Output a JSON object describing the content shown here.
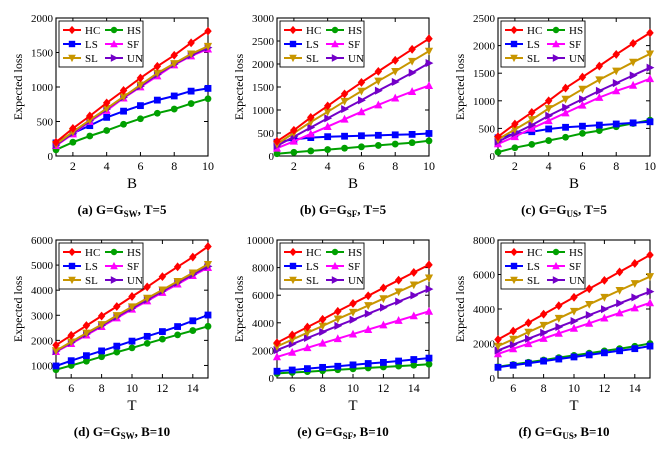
{
  "chart_data": [
    {
      "type": "line",
      "caption": "(a) G=G",
      "caption_sub": "SW",
      "caption_tail": ", T=5",
      "xlabel": "B",
      "ylabel": "Expected loss",
      "xlim": [
        1,
        10
      ],
      "ylim": [
        0,
        2000
      ],
      "xticks": [
        2,
        4,
        6,
        8,
        10
      ],
      "yticks": [
        0,
        500,
        1000,
        1500,
        2000
      ],
      "x": [
        1,
        2,
        3,
        4,
        5,
        6,
        7,
        8,
        9,
        10
      ],
      "series": [
        {
          "name": "HC",
          "values": [
            200,
            400,
            580,
            770,
            950,
            1130,
            1300,
            1460,
            1640,
            1810
          ]
        },
        {
          "name": "LS",
          "values": [
            190,
            330,
            440,
            560,
            650,
            730,
            810,
            870,
            940,
            980
          ]
        },
        {
          "name": "SL",
          "values": [
            170,
            350,
            520,
            690,
            860,
            1030,
            1200,
            1340,
            1480,
            1590
          ]
        },
        {
          "name": "HS",
          "values": [
            90,
            200,
            290,
            370,
            460,
            540,
            620,
            680,
            760,
            830
          ]
        },
        {
          "name": "SF",
          "values": [
            150,
            320,
            500,
            660,
            840,
            1000,
            1160,
            1320,
            1450,
            1550
          ]
        },
        {
          "name": "UN",
          "values": [
            160,
            330,
            510,
            680,
            850,
            1010,
            1180,
            1330,
            1460,
            1570
          ]
        }
      ]
    },
    {
      "type": "line",
      "caption": "(b) G=G",
      "caption_sub": "SF",
      "caption_tail": ", T=5",
      "xlabel": "B",
      "ylabel": "Expected loss",
      "xlim": [
        1,
        10
      ],
      "ylim": [
        0,
        3000
      ],
      "xticks": [
        2,
        4,
        6,
        8,
        10
      ],
      "yticks": [
        0,
        500,
        1000,
        1500,
        2000,
        2500,
        3000
      ],
      "x": [
        1,
        2,
        3,
        4,
        5,
        6,
        7,
        8,
        9,
        10
      ],
      "series": [
        {
          "name": "HC",
          "values": [
            320,
            560,
            840,
            1090,
            1350,
            1600,
            1840,
            2080,
            2320,
            2550
          ]
        },
        {
          "name": "LS",
          "values": [
            300,
            360,
            400,
            420,
            430,
            440,
            450,
            460,
            470,
            490
          ]
        },
        {
          "name": "SL",
          "values": [
            260,
            500,
            740,
            960,
            1190,
            1410,
            1630,
            1840,
            2060,
            2280
          ]
        },
        {
          "name": "HS",
          "values": [
            50,
            80,
            110,
            140,
            170,
            200,
            230,
            260,
            290,
            330
          ]
        },
        {
          "name": "SF",
          "values": [
            170,
            320,
            480,
            640,
            800,
            960,
            1110,
            1260,
            1400,
            1530
          ]
        },
        {
          "name": "UN",
          "values": [
            220,
            420,
            620,
            820,
            1020,
            1210,
            1420,
            1610,
            1810,
            2020
          ]
        }
      ]
    },
    {
      "type": "line",
      "caption": "(c) G=G",
      "caption_sub": "US",
      "caption_tail": ", T=5",
      "xlabel": "B",
      "ylabel": "Expected loss",
      "xlim": [
        1,
        10
      ],
      "ylim": [
        0,
        2500
      ],
      "xticks": [
        2,
        4,
        6,
        8,
        10
      ],
      "yticks": [
        0,
        500,
        1000,
        1500,
        2000,
        2500
      ],
      "x": [
        1,
        2,
        3,
        4,
        5,
        6,
        7,
        8,
        9,
        10
      ],
      "series": [
        {
          "name": "HC",
          "values": [
            350,
            580,
            790,
            1000,
            1230,
            1430,
            1630,
            1840,
            2040,
            2230
          ]
        },
        {
          "name": "LS",
          "values": [
            330,
            400,
            440,
            490,
            520,
            540,
            560,
            580,
            600,
            620
          ]
        },
        {
          "name": "SL",
          "values": [
            300,
            480,
            660,
            860,
            1030,
            1210,
            1380,
            1540,
            1700,
            1850
          ]
        },
        {
          "name": "HS",
          "values": [
            70,
            150,
            210,
            280,
            340,
            410,
            460,
            530,
            590,
            650
          ]
        },
        {
          "name": "SF",
          "values": [
            220,
            350,
            500,
            640,
            780,
            920,
            1060,
            1180,
            1280,
            1400
          ]
        },
        {
          "name": "UN",
          "values": [
            260,
            410,
            560,
            730,
            880,
            1030,
            1180,
            1320,
            1460,
            1600
          ]
        }
      ]
    },
    {
      "type": "line",
      "caption": "(d) G=G",
      "caption_sub": "SW",
      "caption_tail": ", B=10",
      "xlabel": "T",
      "ylabel": "Expected loss",
      "xlim": [
        5,
        15
      ],
      "ylim": [
        500,
        6000
      ],
      "xticks": [
        6,
        8,
        10,
        12,
        14
      ],
      "yticks": [
        1000,
        2000,
        3000,
        4000,
        5000,
        6000
      ],
      "x": [
        5,
        6,
        7,
        8,
        9,
        10,
        11,
        12,
        13,
        14,
        15
      ],
      "series": [
        {
          "name": "HC",
          "values": [
            1810,
            2200,
            2590,
            2970,
            3350,
            3750,
            4130,
            4540,
            4930,
            5320,
            5740
          ]
        },
        {
          "name": "LS",
          "values": [
            980,
            1190,
            1390,
            1580,
            1770,
            1970,
            2160,
            2350,
            2550,
            2780,
            3010
          ]
        },
        {
          "name": "SL",
          "values": [
            1590,
            1940,
            2290,
            2630,
            2990,
            3340,
            3680,
            4010,
            4350,
            4690,
            5030
          ]
        },
        {
          "name": "HS",
          "values": [
            830,
            1000,
            1170,
            1350,
            1530,
            1700,
            1880,
            2050,
            2220,
            2390,
            2560
          ]
        },
        {
          "name": "SF",
          "values": [
            1550,
            1870,
            2210,
            2550,
            2890,
            3240,
            3570,
            3910,
            4240,
            4580,
            4900
          ]
        },
        {
          "name": "UN",
          "values": [
            1570,
            1910,
            2250,
            2590,
            2940,
            3280,
            3620,
            3960,
            4300,
            4620,
            4950
          ]
        }
      ]
    },
    {
      "type": "line",
      "caption": "(e) G=G",
      "caption_sub": "SF",
      "caption_tail": ", B=10",
      "xlabel": "T",
      "ylabel": "Expected loss",
      "xlim": [
        5,
        15
      ],
      "ylim": [
        0,
        10000
      ],
      "xticks": [
        6,
        8,
        10,
        12,
        14
      ],
      "yticks": [
        0,
        2000,
        4000,
        6000,
        8000,
        10000
      ],
      "x": [
        5,
        6,
        7,
        8,
        9,
        10,
        11,
        12,
        13,
        14,
        15
      ],
      "series": [
        {
          "name": "HC",
          "values": [
            2550,
            3120,
            3690,
            4250,
            4830,
            5400,
            5960,
            6530,
            7090,
            7650,
            8200
          ]
        },
        {
          "name": "LS",
          "values": [
            490,
            580,
            680,
            770,
            850,
            950,
            1050,
            1130,
            1230,
            1340,
            1440
          ]
        },
        {
          "name": "SL",
          "values": [
            2280,
            2780,
            3280,
            3770,
            4280,
            4760,
            5250,
            5750,
            6250,
            6750,
            7250
          ]
        },
        {
          "name": "HS",
          "values": [
            330,
            400,
            460,
            530,
            600,
            660,
            730,
            800,
            860,
            930,
            1000
          ]
        },
        {
          "name": "SF",
          "values": [
            1530,
            1860,
            2190,
            2520,
            2850,
            3180,
            3510,
            3840,
            4170,
            4500,
            4830
          ]
        },
        {
          "name": "UN",
          "values": [
            2020,
            2460,
            2900,
            3340,
            3780,
            4220,
            4660,
            5100,
            5540,
            5980,
            6440
          ]
        }
      ]
    },
    {
      "type": "line",
      "caption": "(f) G=G",
      "caption_sub": "US",
      "caption_tail": ", B=10",
      "xlabel": "T",
      "ylabel": "Expected loss",
      "xlim": [
        5,
        15
      ],
      "ylim": [
        0,
        8000
      ],
      "xticks": [
        6,
        8,
        10,
        12,
        14
      ],
      "yticks": [
        0,
        2000,
        4000,
        6000,
        8000
      ],
      "x": [
        5,
        6,
        7,
        8,
        9,
        10,
        11,
        12,
        13,
        14,
        15
      ],
      "series": [
        {
          "name": "HC",
          "values": [
            2230,
            2720,
            3200,
            3700,
            4190,
            4680,
            5170,
            5660,
            6150,
            6640,
            7130
          ]
        },
        {
          "name": "LS",
          "values": [
            620,
            740,
            860,
            980,
            1100,
            1220,
            1340,
            1460,
            1580,
            1700,
            1850
          ]
        },
        {
          "name": "SL",
          "values": [
            1850,
            2250,
            2660,
            3060,
            3460,
            3870,
            4270,
            4680,
            5080,
            5480,
            5880
          ]
        },
        {
          "name": "HS",
          "values": [
            650,
            780,
            910,
            1040,
            1180,
            1310,
            1440,
            1570,
            1700,
            1840,
            2000
          ]
        },
        {
          "name": "SF",
          "values": [
            1400,
            1690,
            1990,
            2290,
            2590,
            2880,
            3170,
            3470,
            3770,
            4060,
            4360
          ]
        },
        {
          "name": "UN",
          "values": [
            1600,
            1940,
            2280,
            2620,
            2960,
            3300,
            3650,
            3990,
            4330,
            4670,
            5010
          ]
        }
      ]
    }
  ],
  "legend": {
    "placement": "top-left",
    "entries": [
      "HC",
      "HS",
      "LS",
      "SF",
      "SL",
      "UN"
    ]
  },
  "styles": {
    "HC": {
      "color": "#ff0000",
      "marker": "diamond"
    },
    "LS": {
      "color": "#0000ff",
      "marker": "square"
    },
    "SL": {
      "color": "#c89600",
      "marker": "triangle-down"
    },
    "HS": {
      "color": "#00a000",
      "marker": "circle"
    },
    "SF": {
      "color": "#ff00ff",
      "marker": "triangle-up"
    },
    "UN": {
      "color": "#7300c8",
      "marker": "triangle-right"
    }
  }
}
